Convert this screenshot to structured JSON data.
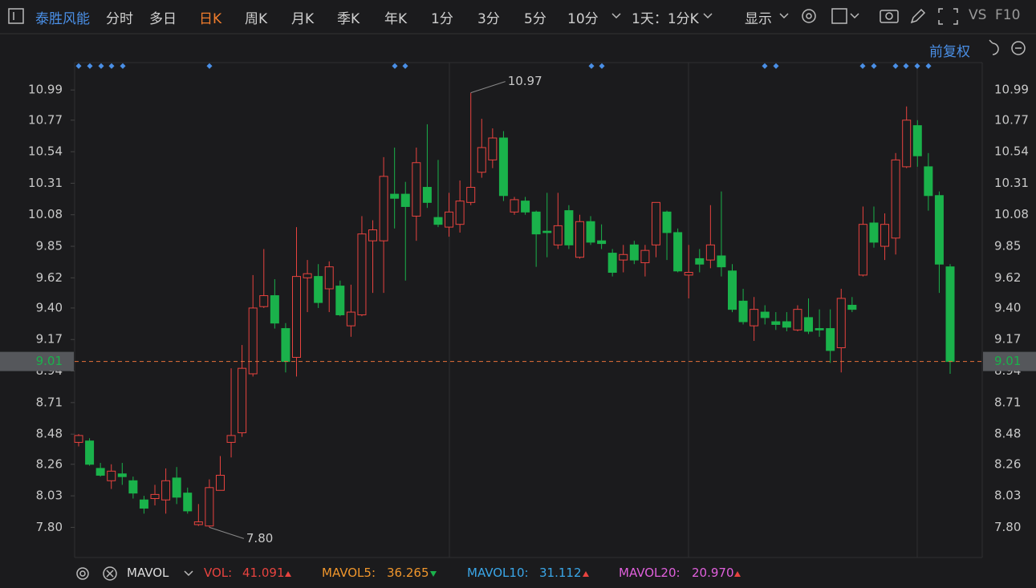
{
  "header": {
    "stock_name": "泰胜风能",
    "tabs": [
      "分时",
      "多日",
      "日K",
      "周K",
      "月K",
      "季K",
      "年K",
      "1分",
      "3分",
      "5分",
      "10分"
    ],
    "period": "1天：1分K",
    "display": "显示",
    "vs": "VS",
    "f10": "F10",
    "adjust": "前复权"
  },
  "chart_data": {
    "type": "candlestick",
    "open": [
      8.42,
      8.43,
      8.23,
      8.14,
      8.19,
      8.14,
      8.0,
      8.01,
      8.0,
      8.16,
      8.05,
      7.82,
      7.81,
      8.07,
      8.42,
      8.49,
      8.92,
      9.41,
      9.49,
      9.25,
      9.04,
      9.62,
      9.63,
      9.54,
      9.56,
      9.27,
      9.35,
      9.89,
      9.89,
      10.23,
      10.23,
      10.07,
      10.28,
      10.06,
      9.99,
      10.01,
      10.17,
      10.39,
      10.48,
      10.64,
      10.1,
      10.18,
      10.1,
      9.96,
      9.86,
      10.11,
      9.77,
      10.03,
      9.89,
      9.8,
      9.75,
      9.86,
      9.73,
      9.86,
      10.1,
      9.95,
      9.64,
      9.76,
      9.75,
      9.78,
      9.67,
      9.45,
      9.27,
      9.37,
      9.3,
      9.3,
      9.24,
      9.33,
      9.25,
      9.25,
      9.11,
      9.42,
      9.64,
      10.02,
      9.85,
      9.91,
      10.43,
      10.73,
      10.43,
      10.22,
      9.7
    ],
    "high": [
      8.48,
      8.45,
      8.27,
      8.26,
      8.27,
      8.17,
      8.03,
      8.11,
      8.23,
      8.24,
      8.09,
      7.97,
      8.15,
      8.32,
      8.96,
      9.13,
      9.64,
      9.83,
      9.61,
      9.29,
      9.99,
      9.75,
      9.72,
      9.74,
      9.6,
      9.57,
      10.07,
      10.04,
      10.5,
      10.57,
      10.32,
      10.57,
      10.74,
      10.48,
      10.24,
      10.33,
      10.97,
      10.78,
      10.71,
      10.69,
      10.21,
      10.21,
      10.11,
      10.24,
      10.24,
      10.15,
      10.08,
      10.07,
      10.01,
      9.83,
      9.86,
      9.89,
      9.86,
      10.17,
      10.11,
      9.98,
      9.86,
      9.83,
      10.15,
      10.25,
      9.72,
      9.54,
      9.48,
      9.42,
      9.37,
      9.37,
      9.42,
      9.47,
      9.39,
      9.39,
      9.54,
      9.48,
      10.14,
      10.14,
      10.09,
      10.53,
      10.87,
      10.77,
      10.53,
      10.25,
      9.72
    ],
    "low": [
      8.39,
      8.25,
      8.17,
      8.08,
      8.11,
      8.01,
      7.9,
      7.96,
      7.9,
      7.97,
      7.9,
      7.81,
      7.8,
      8.07,
      8.31,
      8.46,
      8.9,
      9.4,
      9.25,
      8.93,
      8.9,
      9.37,
      9.4,
      9.37,
      9.34,
      9.19,
      9.34,
      9.51,
      9.51,
      9.98,
      9.6,
      9.89,
      10.13,
      9.99,
      9.92,
      9.95,
      10.15,
      10.35,
      10.42,
      10.18,
      10.08,
      10.08,
      9.7,
      9.77,
      9.83,
      9.83,
      9.76,
      9.86,
      9.83,
      9.63,
      9.66,
      9.72,
      9.63,
      9.77,
      9.75,
      9.66,
      9.47,
      9.66,
      9.69,
      9.63,
      9.37,
      9.28,
      9.16,
      9.28,
      9.24,
      9.23,
      9.23,
      9.21,
      9.19,
      9.0,
      8.93,
      9.37,
      9.63,
      9.84,
      9.75,
      9.79,
      10.42,
      10.43,
      10.11,
      9.51,
      8.92
    ],
    "close": [
      8.47,
      8.26,
      8.18,
      8.21,
      8.17,
      8.05,
      7.94,
      8.04,
      8.14,
      8.02,
      7.92,
      7.84,
      8.09,
      8.18,
      8.47,
      8.96,
      9.4,
      9.49,
      9.29,
      9.01,
      9.63,
      9.65,
      9.44,
      9.7,
      9.35,
      9.37,
      9.94,
      9.97,
      10.36,
      10.2,
      10.14,
      10.46,
      10.17,
      10.01,
      10.1,
      10.18,
      10.28,
      10.57,
      10.64,
      10.22,
      10.19,
      10.1,
      9.94,
      9.95,
      10.0,
      9.86,
      10.03,
      9.88,
      9.87,
      9.66,
      9.79,
      9.75,
      9.82,
      10.17,
      9.95,
      9.67,
      9.66,
      9.72,
      9.86,
      9.7,
      9.39,
      9.3,
      9.39,
      9.33,
      9.28,
      9.26,
      9.39,
      9.23,
      9.24,
      9.09,
      9.47,
      9.39,
      10.01,
      9.88,
      10.01,
      10.48,
      10.77,
      10.51,
      10.22,
      9.72,
      9.01
    ],
    "up_color": "#e8433f",
    "down_color": "#1ab24b",
    "ylim": [
      7.58,
      11.19
    ],
    "yticks": [
      10.99,
      10.77,
      10.54,
      10.31,
      10.08,
      9.85,
      9.62,
      {
        "value": 9.4,
        "label": "9.40"
      },
      9.17,
      8.94,
      8.71,
      8.48,
      8.26,
      8.03,
      {
        "value": 7.8,
        "label": "7.80"
      }
    ],
    "last_price": 9.01,
    "last_price_color": "#e8703a",
    "annotations": [
      {
        "value": 10.97,
        "label": "10.97"
      },
      {
        "value": 7.8,
        "label": "7.80"
      }
    ]
  },
  "indicator_bar": {
    "name": "MAVOL",
    "items": [
      {
        "label": "VOL:",
        "value": "41.091"
      },
      {
        "label": "MAVOL5:",
        "value": "36.265"
      },
      {
        "label": "MAVOL10:",
        "value": "31.112"
      },
      {
        "label": "MAVOL20:",
        "value": "20.970"
      }
    ]
  }
}
